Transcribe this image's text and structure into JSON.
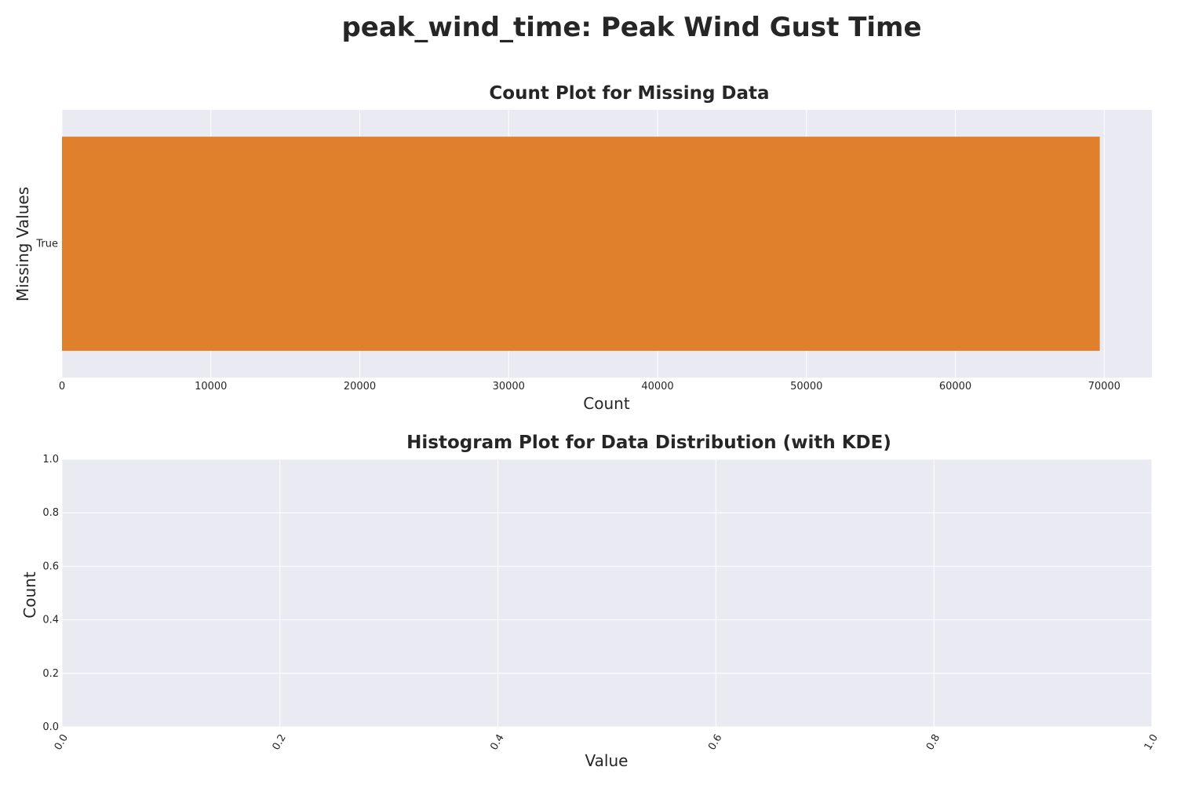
{
  "figure": {
    "suptitle": "peak_wind_time: Peak Wind Gust Time"
  },
  "colors": {
    "plot_background": "#EAEAF2",
    "grid": "#FFFFFF",
    "bar": "#E0802D",
    "text": "#262626"
  },
  "chart_data": [
    {
      "type": "bar",
      "orientation": "horizontal",
      "title": "Count Plot for Missing Data",
      "xlabel": "Count",
      "ylabel": "Missing Values",
      "categories": [
        "True"
      ],
      "values": [
        69700
      ],
      "xlim": [
        0,
        73200
      ],
      "xticks": [
        0,
        10000,
        20000,
        30000,
        40000,
        50000,
        60000,
        70000
      ],
      "xtick_labels": [
        "0",
        "10000",
        "20000",
        "30000",
        "40000",
        "50000",
        "60000",
        "70000"
      ],
      "grid": true
    },
    {
      "type": "bar",
      "title": "Histogram Plot for Data Distribution (with KDE)",
      "xlabel": "Value",
      "ylabel": "Count",
      "categories": [],
      "values": [],
      "xlim": [
        0,
        1
      ],
      "ylim": [
        0,
        1
      ],
      "xticks": [
        0,
        0.2,
        0.4,
        0.6,
        0.8,
        1.0
      ],
      "xtick_labels": [
        "0.0",
        "0.2",
        "0.4",
        "0.6",
        "0.8",
        "1.0"
      ],
      "yticks": [
        0,
        0.2,
        0.4,
        0.6,
        0.8,
        1.0
      ],
      "ytick_labels": [
        "0.0",
        "0.2",
        "0.4",
        "0.6",
        "0.8",
        "1.0"
      ],
      "xtick_rotation": 60,
      "grid": true
    }
  ]
}
